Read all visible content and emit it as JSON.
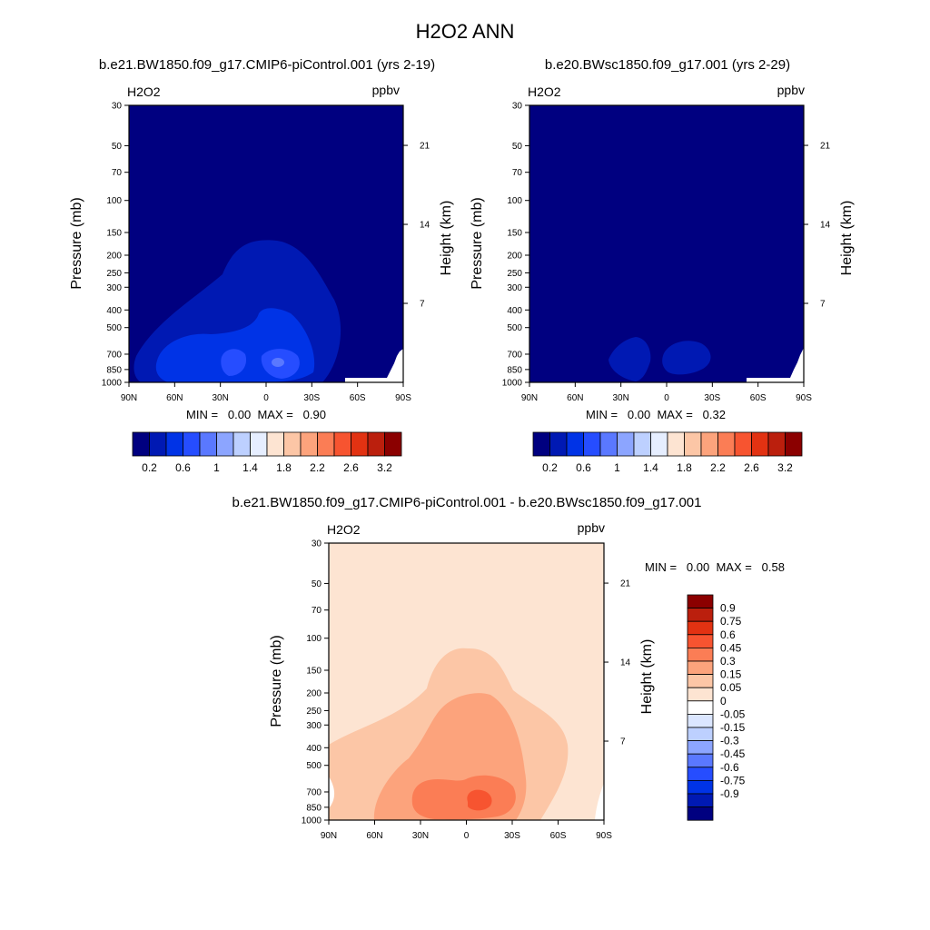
{
  "page_title": "H2O2 ANN",
  "palette_base": [
    "#000080",
    "#0019b3",
    "#0033e6",
    "#264dff",
    "#5a78ff",
    "#8ca5ff",
    "#bdd0ff",
    "#e6eeff",
    "#fde4d2",
    "#fcc6a6",
    "#fca37c",
    "#fb7d55",
    "#f75430",
    "#e23212",
    "#bb1f0d",
    "#8b0000"
  ],
  "colorbar_base": {
    "tick_labels": [
      "0.2",
      "0.6",
      "1",
      "1.4",
      "1.8",
      "2.2",
      "2.6",
      "3.2"
    ]
  },
  "colorbar_diff": {
    "labels": [
      "0.9",
      "0.75",
      "0.6",
      "0.45",
      "0.3",
      "0.15",
      "0.05",
      "0",
      "-0.05",
      "-0.15",
      "-0.3",
      "-0.45",
      "-0.6",
      "-0.75",
      "-0.9"
    ],
    "colors": [
      "#8b0000",
      "#bb1f0d",
      "#e23212",
      "#f75430",
      "#fb7d55",
      "#fca37c",
      "#fcc6a6",
      "#fde4d2",
      "#ffffff",
      "#dbe6ff",
      "#bdd0ff",
      "#8ca5ff",
      "#5a78ff",
      "#264dff",
      "#0033e6",
      "#0019b3",
      "#000080"
    ]
  },
  "chart_data": [
    {
      "type": "contour",
      "title": "b.e21.BW1850.f09_g17.CMIP6-piControl.001 (yrs 2-19)",
      "variable": "H2O2",
      "units": "ppbv",
      "ylabel": "Pressure (mb)",
      "ylabel_right": "Height (km)",
      "y_ticks": [
        "30",
        "50",
        "70",
        "100",
        "150",
        "200",
        "250",
        "300",
        "400",
        "500",
        "700",
        "850",
        "1000"
      ],
      "y_right_ticks": [
        "21",
        "14",
        "7"
      ],
      "x_ticks": [
        "90N",
        "60N",
        "30N",
        "0",
        "30S",
        "60S",
        "90S"
      ],
      "stats": "MIN =   0.00  MAX =   0.90",
      "min": 0.0,
      "max": 0.9,
      "contour_levels": [
        0.2,
        0.4,
        0.6,
        0.8
      ]
    },
    {
      "type": "contour",
      "title": "b.e20.BWsc1850.f09_g17.001 (yrs 2-29)",
      "variable": "H2O2",
      "units": "ppbv",
      "ylabel": "Pressure (mb)",
      "ylabel_right": "Height (km)",
      "y_ticks": [
        "30",
        "50",
        "70",
        "100",
        "150",
        "200",
        "250",
        "300",
        "400",
        "500",
        "700",
        "850",
        "1000"
      ],
      "y_right_ticks": [
        "21",
        "14",
        "7"
      ],
      "x_ticks": [
        "90N",
        "60N",
        "30N",
        "0",
        "30S",
        "60S",
        "90S"
      ],
      "stats": "MIN =   0.00  MAX =   0.32",
      "min": 0.0,
      "max": 0.32,
      "contour_levels": [
        0.2
      ]
    },
    {
      "type": "contour",
      "title": "b.e21.BW1850.f09_g17.CMIP6-piControl.001 - b.e20.BWsc1850.f09_g17.001",
      "variable": "H2O2",
      "units": "ppbv",
      "ylabel": "Pressure (mb)",
      "ylabel_right": "Height (km)",
      "y_ticks": [
        "30",
        "50",
        "70",
        "100",
        "150",
        "200",
        "250",
        "300",
        "400",
        "500",
        "700",
        "850",
        "1000"
      ],
      "y_right_ticks": [
        "21",
        "14",
        "7"
      ],
      "x_ticks": [
        "90N",
        "60N",
        "30N",
        "0",
        "30S",
        "60S",
        "90S"
      ],
      "stats": "MIN =   0.00  MAX =   0.58",
      "min": 0.0,
      "max": 0.58,
      "contour_levels": [
        0.05,
        0.15,
        0.3,
        0.45
      ]
    }
  ]
}
